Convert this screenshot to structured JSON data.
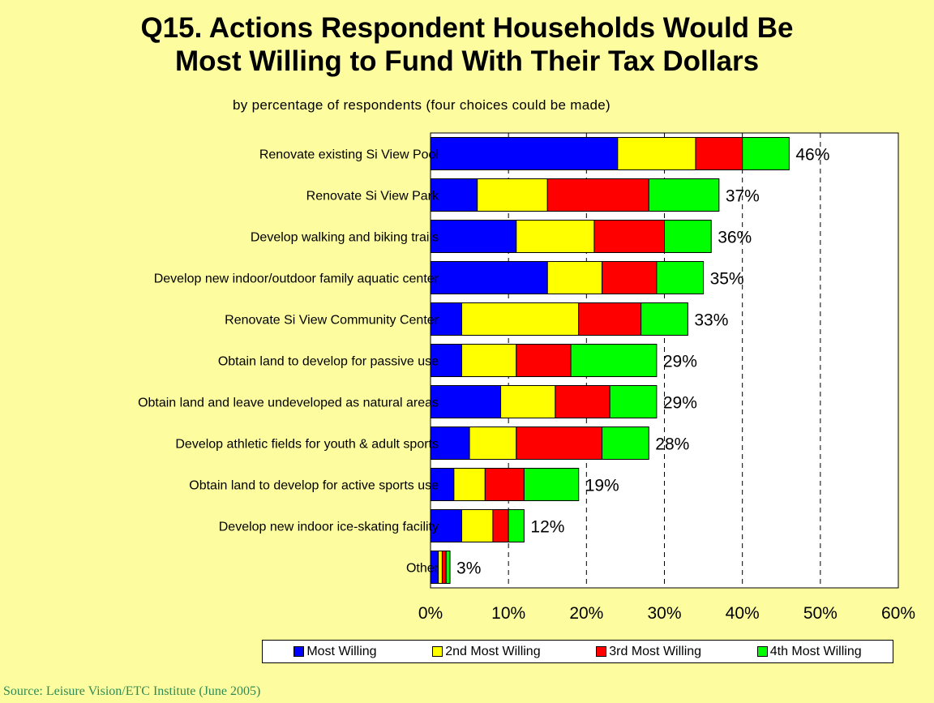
{
  "title_line1": "Q15. Actions Respondent Households Would Be",
  "title_line2": "Most Willing to Fund With Their Tax Dollars",
  "subtitle": "by percentage of respondents (four choices could be made)",
  "source": "Source: Leisure Vision/ETC Institute (June 2005)",
  "colors": {
    "most": "#0000ff",
    "second": "#ffff00",
    "third": "#ff0000",
    "fourth": "#00ff00",
    "background": "#fdfd9f",
    "plot": "#ffffff"
  },
  "legend": [
    {
      "label": "Most Willing",
      "color": "#0000ff"
    },
    {
      "label": "2nd Most Willing",
      "color": "#ffff00"
    },
    {
      "label": "3rd Most Willing",
      "color": "#ff0000"
    },
    {
      "label": "4th Most Willing",
      "color": "#00ff00"
    }
  ],
  "chart_data": {
    "type": "bar",
    "orientation": "horizontal",
    "stacked": true,
    "title": "Q15. Actions Respondent Households Would Be Most Willing to Fund With Their Tax Dollars",
    "subtitle": "by percentage of respondents (four choices could be made)",
    "xlim": [
      0,
      60
    ],
    "xticks": [
      "0%",
      "10%",
      "20%",
      "30%",
      "40%",
      "50%",
      "60%"
    ],
    "grid": "vertical dashed",
    "legend_position": "bottom",
    "categories": [
      "Renovate existing Si View Pool",
      "Renovate Si View Park",
      "Develop walking and biking trails",
      "Develop new indoor/outdoor family aquatic center",
      "Renovate Si View Community Center",
      "Obtain land to develop for passive use",
      "Obtain land and leave undeveloped as natural areas",
      "Develop athletic fields for youth & adult sports",
      "Obtain land to develop for active sports use",
      "Develop new indoor ice-skating facility",
      "Other"
    ],
    "totals_labels": [
      "46%",
      "37%",
      "36%",
      "35%",
      "33%",
      "29%",
      "29%",
      "28%",
      "19%",
      "12%",
      "3%"
    ],
    "series": [
      {
        "name": "Most Willing",
        "values": [
          24,
          6,
          11,
          15,
          4,
          4,
          9,
          5,
          3,
          4,
          1
        ]
      },
      {
        "name": "2nd Most Willing",
        "values": [
          10,
          9,
          10,
          7,
          15,
          7,
          7,
          6,
          4,
          4,
          0.5
        ]
      },
      {
        "name": "3rd Most Willing",
        "values": [
          6,
          13,
          9,
          7,
          8,
          7,
          7,
          11,
          5,
          2,
          0.5
        ]
      },
      {
        "name": "4th Most Willing",
        "values": [
          6,
          9,
          6,
          6,
          6,
          11,
          6,
          6,
          7,
          2,
          0.5
        ]
      }
    ]
  }
}
